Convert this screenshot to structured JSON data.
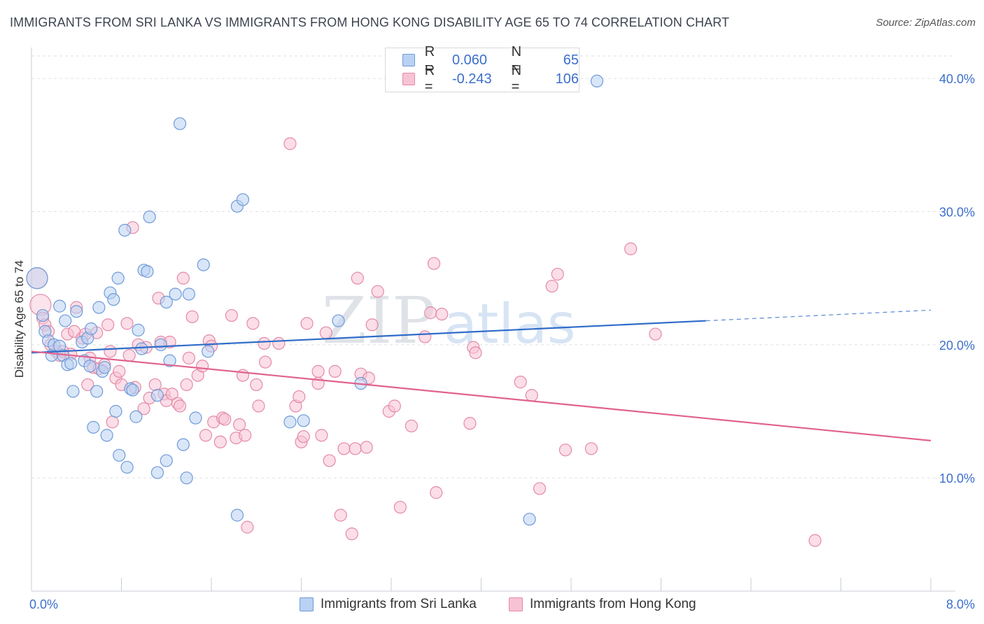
{
  "title": "IMMIGRANTS FROM SRI LANKA VS IMMIGRANTS FROM HONG KONG DISABILITY AGE 65 TO 74 CORRELATION CHART",
  "source": "Source: ZipAtlas.com",
  "watermark": {
    "zip": "ZIP",
    "atlas": "atlas"
  },
  "legend_top": {
    "rows": [
      {
        "r_label": "R =",
        "r_value": "0.060",
        "n_label": "N =",
        "n_value": "65"
      },
      {
        "r_label": "R =",
        "r_value": "-0.243",
        "n_label": "N =",
        "n_value": "106"
      }
    ]
  },
  "legend_bottom": [
    "Immigrants from Sri Lanka",
    "Immigrants from Hong Kong"
  ],
  "colors": {
    "blue_fill": "#b9d1f2",
    "blue_stroke": "#6f9bd8",
    "blue_line": "#2f6cc9",
    "pink_fill": "#f7c3d4",
    "pink_stroke": "#e48aa8",
    "pink_line": "#e0628e",
    "tick_label": "#3d6fcb",
    "grid": "#dde1e6"
  },
  "chart_data": {
    "type": "scatter",
    "title": "IMMIGRANTS FROM SRI LANKA VS IMMIGRANTS FROM HONG KONG DISABILITY AGE 65 TO 74 CORRELATION CHART",
    "xlabel": "",
    "ylabel": "Disability Age 65 to 74",
    "xlim": [
      0,
      8
    ],
    "ylim": [
      1.5,
      42
    ],
    "x_tick_labels": [
      "0.0%",
      "8.0%"
    ],
    "x_tick_label_values": [
      0,
      8
    ],
    "y_ticks": [
      10,
      20,
      30,
      40
    ],
    "y_tick_labels": [
      "10.0%",
      "20.0%",
      "30.0%",
      "40.0%"
    ],
    "grid": true,
    "legend_position": "bottom",
    "series": [
      {
        "name": "Immigrants from Sri Lanka",
        "R": 0.06,
        "N": 65,
        "trend": {
          "x": [
            0,
            6.0
          ],
          "y": [
            19.4,
            21.8
          ],
          "dashed_x": [
            6.0,
            8.0
          ],
          "dashed_y": [
            21.8,
            22.6
          ]
        },
        "points": [
          [
            0.05,
            25.0
          ],
          [
            0.1,
            22.2
          ],
          [
            0.12,
            21.0
          ],
          [
            0.15,
            20.3
          ],
          [
            0.18,
            19.2
          ],
          [
            0.2,
            20.0
          ],
          [
            0.25,
            19.9
          ],
          [
            0.25,
            22.9
          ],
          [
            0.28,
            19.2
          ],
          [
            0.3,
            21.8
          ],
          [
            0.32,
            18.5
          ],
          [
            0.35,
            18.6
          ],
          [
            0.37,
            16.5
          ],
          [
            0.4,
            22.5
          ],
          [
            0.45,
            20.2
          ],
          [
            0.47,
            18.8
          ],
          [
            0.5,
            20.5
          ],
          [
            0.52,
            18.4
          ],
          [
            0.53,
            21.2
          ],
          [
            0.55,
            13.8
          ],
          [
            0.58,
            16.5
          ],
          [
            0.6,
            22.8
          ],
          [
            0.63,
            18.0
          ],
          [
            0.65,
            18.3
          ],
          [
            0.67,
            13.2
          ],
          [
            0.7,
            23.9
          ],
          [
            0.73,
            23.4
          ],
          [
            0.75,
            15.0
          ],
          [
            0.77,
            25.0
          ],
          [
            0.78,
            11.7
          ],
          [
            0.83,
            28.6
          ],
          [
            0.85,
            10.8
          ],
          [
            0.88,
            16.7
          ],
          [
            0.9,
            16.6
          ],
          [
            0.93,
            14.6
          ],
          [
            0.95,
            21.1
          ],
          [
            0.98,
            19.7
          ],
          [
            1.0,
            25.6
          ],
          [
            1.03,
            25.5
          ],
          [
            1.05,
            29.6
          ],
          [
            1.12,
            10.4
          ],
          [
            1.12,
            16.2
          ],
          [
            1.15,
            20.0
          ],
          [
            1.2,
            23.2
          ],
          [
            1.2,
            11.3
          ],
          [
            1.23,
            18.8
          ],
          [
            1.28,
            23.8
          ],
          [
            1.32,
            36.6
          ],
          [
            1.35,
            12.5
          ],
          [
            1.38,
            10.0
          ],
          [
            1.4,
            23.8
          ],
          [
            1.46,
            14.5
          ],
          [
            1.53,
            26.0
          ],
          [
            1.57,
            19.5
          ],
          [
            1.83,
            7.2
          ],
          [
            1.83,
            30.4
          ],
          [
            1.88,
            30.9
          ],
          [
            2.3,
            14.2
          ],
          [
            2.42,
            14.3
          ],
          [
            2.73,
            21.8
          ],
          [
            2.93,
            17.1
          ],
          [
            4.43,
            6.9
          ],
          [
            5.03,
            39.8
          ]
        ]
      },
      {
        "name": "Immigrants from Hong Kong",
        "R": -0.243,
        "N": 106,
        "trend": {
          "x": [
            0,
            8.0
          ],
          "y": [
            19.5,
            12.8
          ]
        },
        "points": [
          [
            0.05,
            25.0
          ],
          [
            0.08,
            23.0
          ],
          [
            0.1,
            22.0
          ],
          [
            0.12,
            21.5
          ],
          [
            0.15,
            21.0
          ],
          [
            0.17,
            20.0
          ],
          [
            0.22,
            19.5
          ],
          [
            0.25,
            19.2
          ],
          [
            0.28,
            19.5
          ],
          [
            0.32,
            20.8
          ],
          [
            0.35,
            19.3
          ],
          [
            0.38,
            21.0
          ],
          [
            0.4,
            22.8
          ],
          [
            0.45,
            20.5
          ],
          [
            0.48,
            20.8
          ],
          [
            0.5,
            17.0
          ],
          [
            0.52,
            19.0
          ],
          [
            0.55,
            18.3
          ],
          [
            0.58,
            20.9
          ],
          [
            0.6,
            18.2
          ],
          [
            0.65,
            18.5
          ],
          [
            0.68,
            21.5
          ],
          [
            0.7,
            19.5
          ],
          [
            0.72,
            14.2
          ],
          [
            0.75,
            17.5
          ],
          [
            0.78,
            18.0
          ],
          [
            0.8,
            17.0
          ],
          [
            0.85,
            21.6
          ],
          [
            0.87,
            19.2
          ],
          [
            0.9,
            28.8
          ],
          [
            0.92,
            16.8
          ],
          [
            0.95,
            20.0
          ],
          [
            1.0,
            15.2
          ],
          [
            1.02,
            19.8
          ],
          [
            1.05,
            16.0
          ],
          [
            1.1,
            17.0
          ],
          [
            1.13,
            23.5
          ],
          [
            1.15,
            20.2
          ],
          [
            1.18,
            16.3
          ],
          [
            1.2,
            15.8
          ],
          [
            1.23,
            20.2
          ],
          [
            1.25,
            16.3
          ],
          [
            1.3,
            15.6
          ],
          [
            1.32,
            15.4
          ],
          [
            1.35,
            25.0
          ],
          [
            1.38,
            17.0
          ],
          [
            1.4,
            19.0
          ],
          [
            1.43,
            22.1
          ],
          [
            1.48,
            17.7
          ],
          [
            1.52,
            18.4
          ],
          [
            1.55,
            13.2
          ],
          [
            1.58,
            20.3
          ],
          [
            1.6,
            19.9
          ],
          [
            1.62,
            14.2
          ],
          [
            1.68,
            12.7
          ],
          [
            1.7,
            14.5
          ],
          [
            1.72,
            14.4
          ],
          [
            1.78,
            22.2
          ],
          [
            1.82,
            13.0
          ],
          [
            1.85,
            14.0
          ],
          [
            1.88,
            17.7
          ],
          [
            1.9,
            13.2
          ],
          [
            1.92,
            6.3
          ],
          [
            1.97,
            21.6
          ],
          [
            2.0,
            17.0
          ],
          [
            2.02,
            15.4
          ],
          [
            2.07,
            20.1
          ],
          [
            2.08,
            18.7
          ],
          [
            2.2,
            20.1
          ],
          [
            2.3,
            35.1
          ],
          [
            2.35,
            15.4
          ],
          [
            2.38,
            16.1
          ],
          [
            2.4,
            12.7
          ],
          [
            2.42,
            13.1
          ],
          [
            2.45,
            21.6
          ],
          [
            2.55,
            18.0
          ],
          [
            2.55,
            17.1
          ],
          [
            2.58,
            13.2
          ],
          [
            2.62,
            20.9
          ],
          [
            2.65,
            11.3
          ],
          [
            2.7,
            18.0
          ],
          [
            2.75,
            7.2
          ],
          [
            2.78,
            12.2
          ],
          [
            2.85,
            5.8
          ],
          [
            2.88,
            12.2
          ],
          [
            2.9,
            25.0
          ],
          [
            2.93,
            17.8
          ],
          [
            2.98,
            12.3
          ],
          [
            3.0,
            17.5
          ],
          [
            3.03,
            21.5
          ],
          [
            3.08,
            24.0
          ],
          [
            3.18,
            15.0
          ],
          [
            3.23,
            15.4
          ],
          [
            3.28,
            7.8
          ],
          [
            3.38,
            13.9
          ],
          [
            3.5,
            20.6
          ],
          [
            3.55,
            22.4
          ],
          [
            3.58,
            26.1
          ],
          [
            3.6,
            8.9
          ],
          [
            3.65,
            22.3
          ],
          [
            3.9,
            14.1
          ],
          [
            3.93,
            19.8
          ],
          [
            3.95,
            19.4
          ],
          [
            4.35,
            17.2
          ],
          [
            4.45,
            16.2
          ],
          [
            4.52,
            9.2
          ],
          [
            4.63,
            24.4
          ],
          [
            4.68,
            25.3
          ],
          [
            4.75,
            12.1
          ],
          [
            4.98,
            12.2
          ],
          [
            5.33,
            27.2
          ],
          [
            5.55,
            20.8
          ],
          [
            6.97,
            5.3
          ]
        ]
      }
    ]
  }
}
